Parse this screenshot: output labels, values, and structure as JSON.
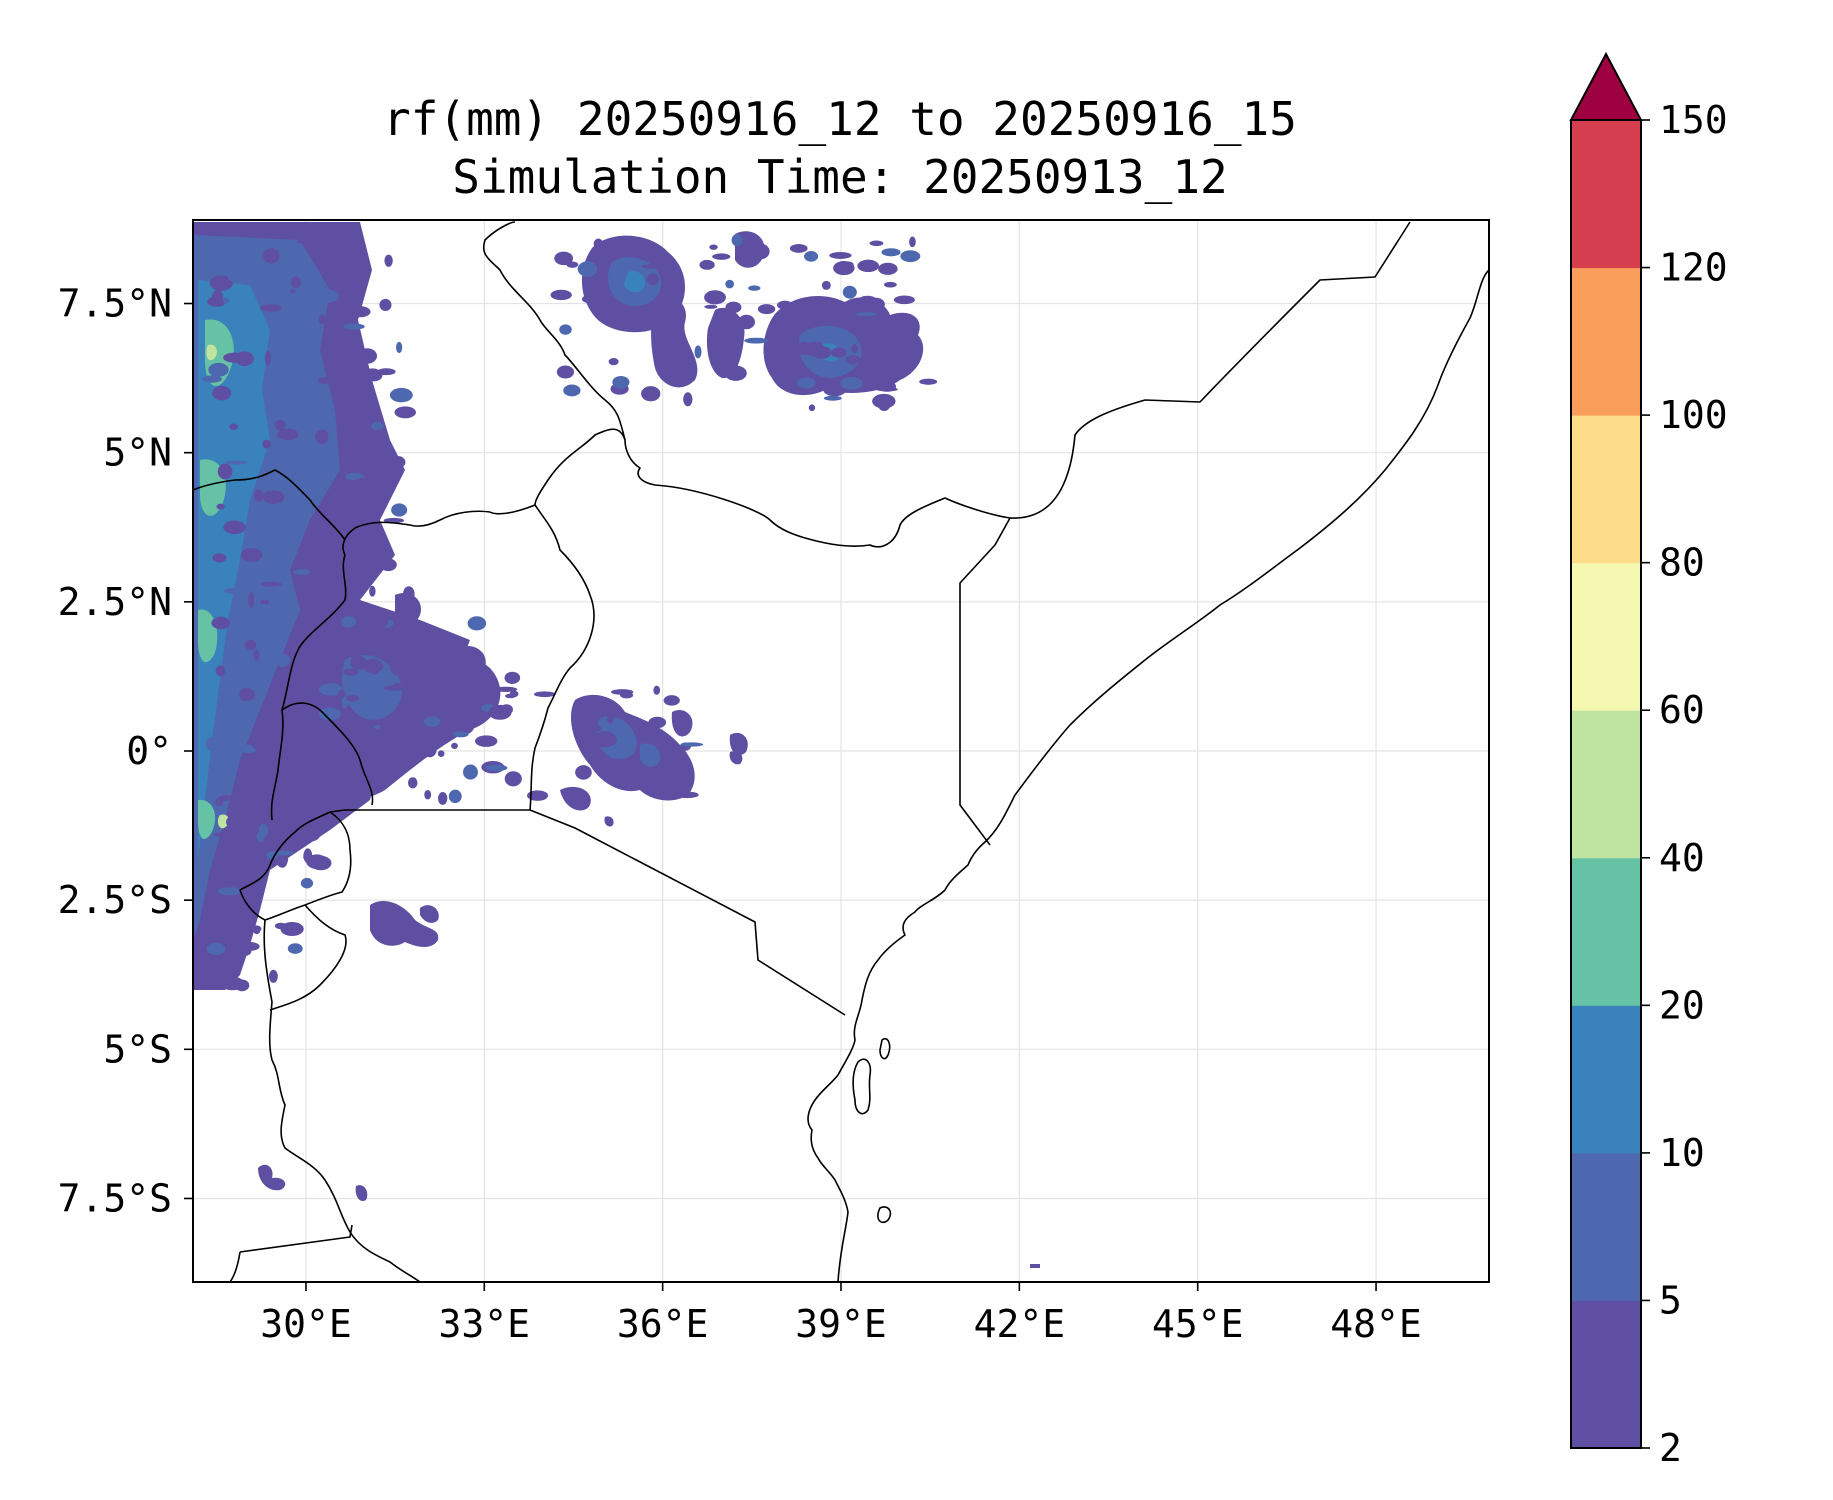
{
  "title_line1": "rf(mm) 20250916_12 to 20250916_15",
  "title_line2": "Simulation Time: 20250913_12",
  "map": {
    "lon_range": [
      28.1,
      49.9
    ],
    "lat_range": [
      -8.9,
      8.9
    ],
    "x_ticks": [
      "30°E",
      "33°E",
      "36°E",
      "39°E",
      "42°E",
      "45°E",
      "48°E"
    ],
    "y_ticks": [
      "7.5°N",
      "5°N",
      "2.5°N",
      "0°",
      "2.5°S",
      "5°S",
      "7.5°S"
    ],
    "gridlines": true
  },
  "colorbar": {
    "levels": [
      "2",
      "5",
      "10",
      "20",
      "40",
      "60",
      "80",
      "100",
      "120",
      "150"
    ],
    "colors": [
      "#5e4fa2",
      "#4d68ae",
      "#3a82bc",
      "#66c2a5",
      "#bfe3a0",
      "#f4f8b0",
      "#fddd8a",
      "#f99e5a",
      "#d53e4f"
    ],
    "extend_color": "#9e0142",
    "extend": "max"
  }
}
